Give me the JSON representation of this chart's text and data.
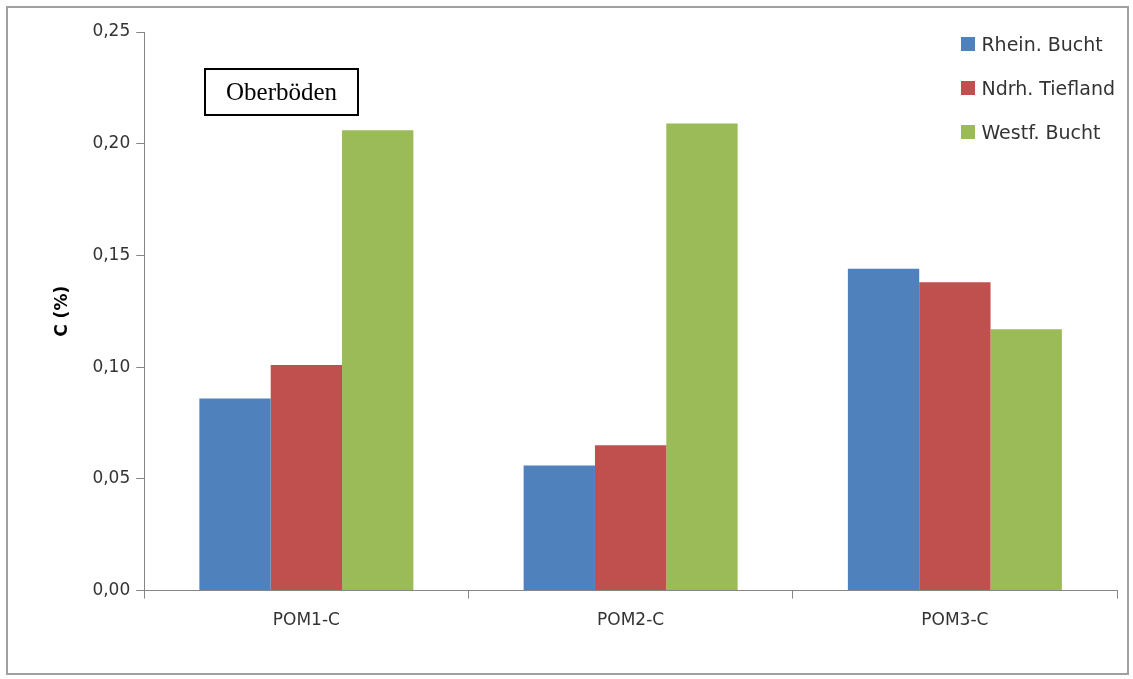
{
  "chart_data": {
    "type": "bar",
    "ylabel": "C (%)",
    "categories": [
      "POM1-C",
      "POM2-C",
      "POM3-C"
    ],
    "series": [
      {
        "name": "Rhein. Bucht",
        "color": "#4f81bd",
        "values": [
          0.086,
          0.056,
          0.144
        ]
      },
      {
        "name": "Ndrh. Tiefland",
        "color": "#c0504d",
        "values": [
          0.101,
          0.065,
          0.138
        ]
      },
      {
        "name": "Westf. Bucht",
        "color": "#9bbb59",
        "values": [
          0.206,
          0.209,
          0.117
        ]
      }
    ],
    "ylim": [
      0,
      0.25
    ],
    "yticks": [
      {
        "value": 0,
        "label": "0,00"
      },
      {
        "value": 0.05,
        "label": "0,05"
      },
      {
        "value": 0.1,
        "label": "0,10"
      },
      {
        "value": 0.15,
        "label": "0,15"
      },
      {
        "value": 0.2,
        "label": "0,20"
      },
      {
        "value": 0.25,
        "label": "0,25"
      }
    ],
    "grid": false,
    "legend": "top right",
    "annotations": [
      "Oberböden"
    ]
  }
}
